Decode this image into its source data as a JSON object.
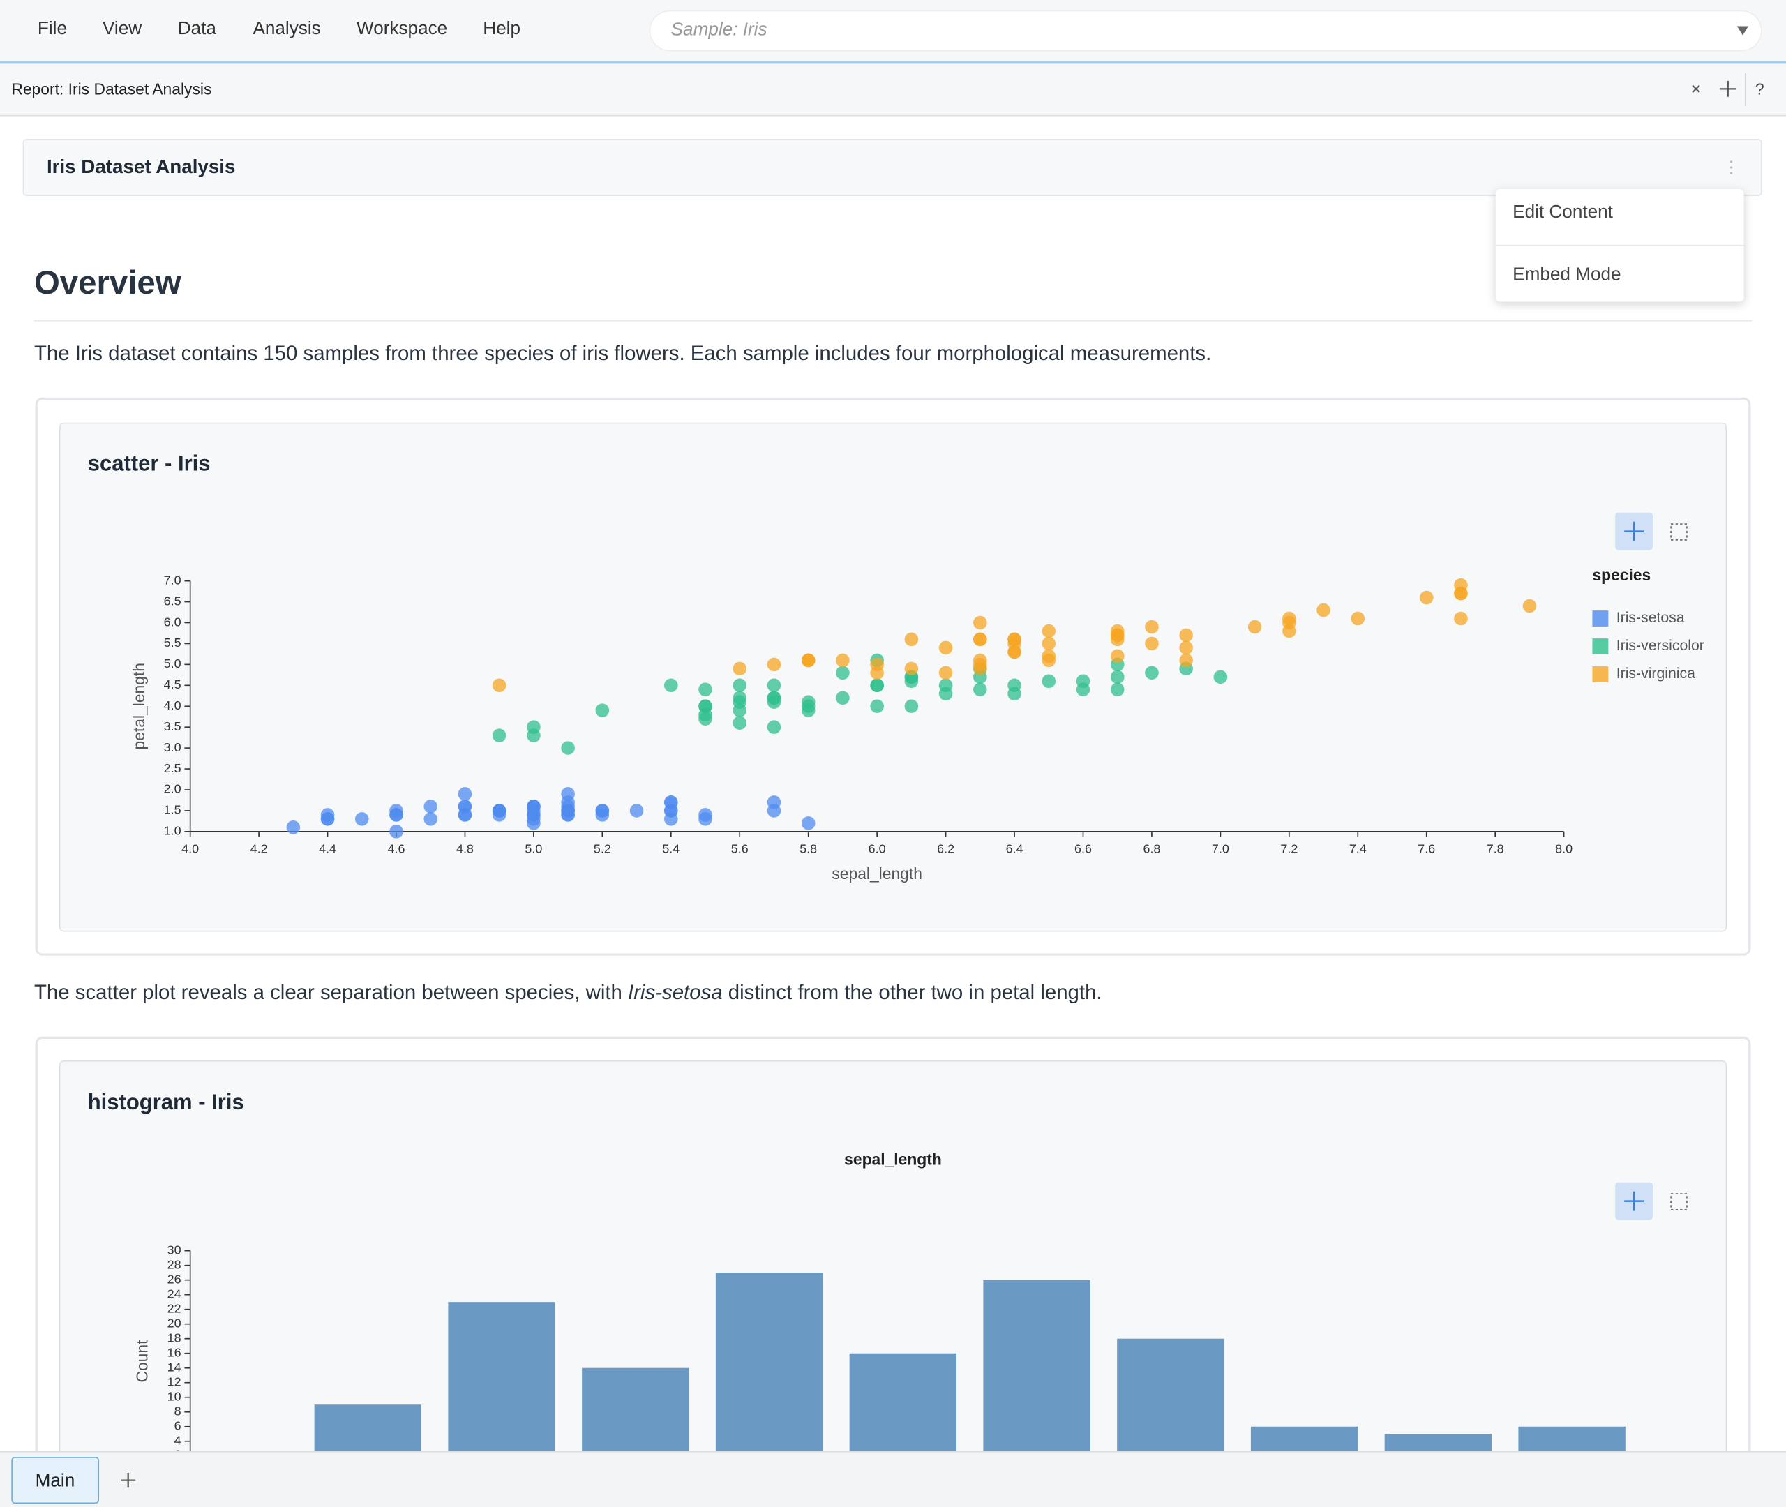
{
  "menu": [
    "File",
    "View",
    "Data",
    "Analysis",
    "Workspace",
    "Help"
  ],
  "sample_selector": "Sample: Iris",
  "tab": {
    "title": "Report: Iris Dataset Analysis",
    "help": "?"
  },
  "report": {
    "title": "Iris Dataset Analysis",
    "menu": [
      "Edit Content",
      "Embed Mode"
    ],
    "heading": "Overview",
    "paragraph_1": "The Iris dataset contains 150 samples from three species of iris flowers. Each sample includes four morphological measurements.",
    "paragraph_2": [
      "The scatter plot reveals a clear separation between species, with ",
      "Iris-setosa",
      " distinct from the other two in petal length."
    ]
  },
  "chart_data": [
    {
      "type": "scatter",
      "title": "scatter - Iris",
      "xlabel": "sepal_length",
      "ylabel": "petal_length",
      "legend_title": "species",
      "legend": "right",
      "xlim": [
        4.0,
        8.0
      ],
      "xticks": [
        {
          "value": 4.0,
          "label": "4.0"
        },
        4.2,
        4.4,
        4.6,
        4.8,
        {
          "value": 5.0,
          "label": "5.0"
        },
        5.2,
        5.4,
        5.6,
        5.8,
        {
          "value": 6.0,
          "label": "6.0"
        },
        6.2,
        6.4,
        6.6,
        6.8,
        {
          "value": 7.0,
          "label": "7.0"
        },
        7.2,
        7.4,
        7.6,
        7.8,
        {
          "value": 8.0,
          "label": "8.0"
        }
      ],
      "ylim": [
        1.0,
        7.0
      ],
      "yticks": [
        {
          "value": 1.0,
          "label": "1.0"
        },
        1.5,
        {
          "value": 2.0,
          "label": "2.0"
        },
        2.5,
        {
          "value": 3.0,
          "label": "3.0"
        },
        3.5,
        {
          "value": 4.0,
          "label": "4.0"
        },
        4.5,
        {
          "value": 5.0,
          "label": "5.0"
        },
        5.5,
        {
          "value": 6.0,
          "label": "6.0"
        },
        6.5,
        {
          "value": 7.0,
          "label": "7.0"
        }
      ],
      "series": [
        {
          "name": "Iris-setosa",
          "color": "#4f8bef",
          "x": [
            5.1,
            4.9,
            4.7,
            4.6,
            5.0,
            5.4,
            4.6,
            5.0,
            4.4,
            4.9,
            5.4,
            4.8,
            4.8,
            4.3,
            5.8,
            5.7,
            5.4,
            5.1,
            5.7,
            5.1,
            5.4,
            5.1,
            4.6,
            5.1,
            4.8,
            5.0,
            5.0,
            5.2,
            5.2,
            4.7,
            4.8,
            5.4,
            5.2,
            5.5,
            4.9,
            5.0,
            5.5,
            4.9,
            4.4,
            5.1,
            5.0,
            4.5,
            4.4,
            5.0,
            5.1,
            4.8,
            5.1,
            4.6,
            5.3,
            5.0
          ],
          "values": [
            1.4,
            1.4,
            1.3,
            1.5,
            1.4,
            1.7,
            1.4,
            1.5,
            1.4,
            1.5,
            1.5,
            1.6,
            1.4,
            1.1,
            1.2,
            1.5,
            1.3,
            1.4,
            1.7,
            1.5,
            1.7,
            1.5,
            1.0,
            1.7,
            1.9,
            1.6,
            1.6,
            1.5,
            1.4,
            1.6,
            1.6,
            1.5,
            1.5,
            1.4,
            1.5,
            1.2,
            1.3,
            1.5,
            1.3,
            1.5,
            1.3,
            1.3,
            1.3,
            1.6,
            1.9,
            1.4,
            1.6,
            1.4,
            1.5,
            1.4
          ]
        },
        {
          "name": "Iris-versicolor",
          "color": "#2fbf8c",
          "x": [
            7.0,
            6.4,
            6.9,
            5.5,
            6.5,
            5.7,
            6.3,
            4.9,
            6.6,
            5.2,
            5.0,
            5.9,
            6.0,
            6.1,
            5.6,
            6.7,
            5.6,
            5.8,
            6.2,
            5.6,
            5.9,
            6.1,
            6.3,
            6.1,
            6.4,
            6.6,
            6.8,
            6.7,
            6.0,
            5.7,
            5.5,
            5.5,
            5.8,
            6.0,
            5.4,
            6.0,
            6.7,
            6.3,
            5.6,
            5.5,
            5.5,
            6.1,
            5.8,
            5.0,
            5.6,
            5.7,
            5.7,
            6.2,
            5.1,
            5.7
          ],
          "values": [
            4.7,
            4.5,
            4.9,
            4.0,
            4.6,
            4.5,
            4.7,
            3.3,
            4.6,
            3.9,
            3.5,
            4.2,
            4.0,
            4.7,
            3.6,
            4.4,
            4.5,
            4.1,
            4.5,
            3.9,
            4.8,
            4.0,
            4.9,
            4.7,
            4.3,
            4.4,
            4.8,
            5.0,
            4.5,
            3.5,
            3.8,
            3.7,
            3.9,
            5.1,
            4.5,
            4.5,
            4.7,
            4.4,
            4.1,
            4.0,
            4.4,
            4.6,
            4.0,
            3.3,
            4.2,
            4.2,
            4.2,
            4.3,
            3.0,
            4.1
          ]
        },
        {
          "name": "Iris-virginica",
          "color": "#f5a623",
          "x": [
            6.3,
            5.8,
            7.1,
            6.3,
            6.5,
            7.6,
            4.9,
            7.3,
            6.7,
            7.2,
            6.5,
            6.4,
            6.8,
            5.7,
            5.8,
            6.4,
            6.5,
            7.7,
            7.7,
            6.0,
            6.9,
            5.6,
            7.7,
            6.3,
            6.7,
            7.2,
            6.2,
            6.1,
            6.4,
            7.2,
            7.4,
            7.9,
            6.4,
            6.3,
            6.1,
            7.7,
            6.3,
            6.4,
            6.0,
            6.9,
            6.7,
            6.9,
            5.8,
            6.8,
            6.7,
            6.7,
            6.3,
            6.5,
            6.2,
            5.9
          ],
          "values": [
            6.0,
            5.1,
            5.9,
            5.6,
            5.8,
            6.6,
            4.5,
            6.3,
            5.8,
            6.1,
            5.1,
            5.3,
            5.5,
            5.0,
            5.1,
            5.3,
            5.5,
            6.7,
            6.9,
            5.0,
            5.7,
            4.9,
            6.7,
            4.9,
            5.7,
            6.0,
            4.8,
            4.9,
            5.6,
            5.8,
            6.1,
            6.4,
            5.6,
            5.1,
            5.6,
            6.1,
            5.6,
            5.5,
            4.8,
            5.4,
            5.6,
            5.1,
            5.1,
            5.9,
            5.7,
            5.2,
            5.0,
            5.2,
            5.4,
            5.1
          ]
        }
      ]
    },
    {
      "type": "histogram",
      "title": "histogram - Iris",
      "subtitle": "sepal_length",
      "ylabel": "Count",
      "color": "#6a9ac4",
      "bins": [
        4.3,
        4.66,
        5.02,
        5.38,
        5.74,
        6.1,
        6.46,
        6.82,
        7.18,
        7.54,
        7.9
      ],
      "values": [
        9,
        23,
        14,
        27,
        16,
        26,
        18,
        6,
        5,
        6
      ],
      "ylim": [
        0,
        30
      ],
      "yticks": [
        0,
        2,
        4,
        6,
        8,
        10,
        12,
        14,
        16,
        18,
        20,
        22,
        24,
        26,
        28,
        30
      ]
    }
  ],
  "bottom_tabs": [
    "Main"
  ]
}
